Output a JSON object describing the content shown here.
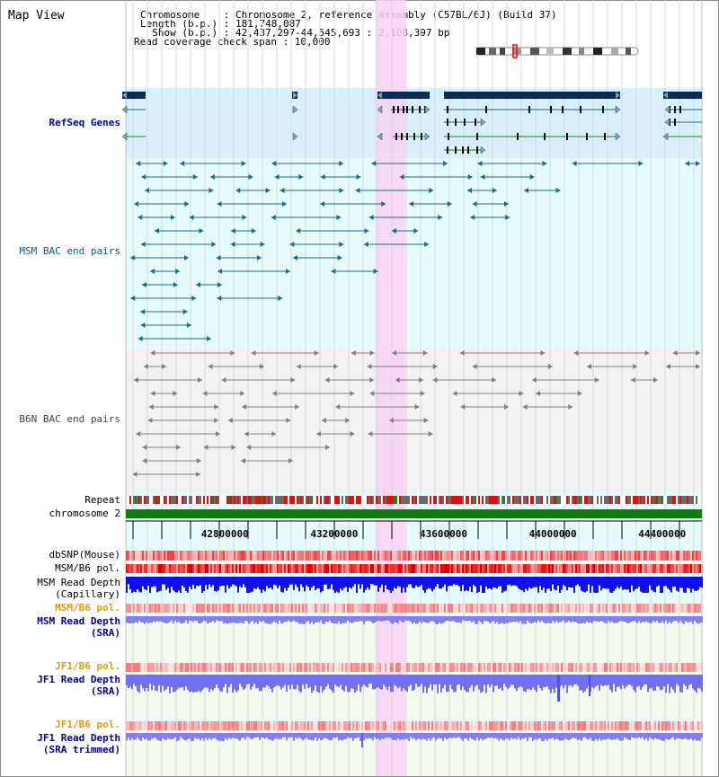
{
  "header": {
    "view_title": "Map View",
    "chromosome_line": "Chromosome    : Chromosome 2, reference assembly (C57BL/6J) (Build 37)",
    "length_line": "Length (b.p.) : 181,748,087",
    "show_line": "  Show (b.p.) : 42,437,297-44,545,693 : 2,108,397 bp",
    "coverage_line": "Read coverage check span : 10,000"
  },
  "ideogram": {
    "name": "chromosome-2-ideogram",
    "highlight_color": "#ff0000"
  },
  "colors": {
    "refseq_bg": "#d8f0fa",
    "track_bg": "#e6fcfc",
    "b6n_bg": "#f2f2f2",
    "sra_bg": "#f2fbee",
    "highlight": "#f9d2f4",
    "refseq_gene": "#0a2a5a",
    "msm_pair": "#1a6a8a",
    "b6n_pair": "#808080",
    "chromosome_bar": "#117a11",
    "axis_label_blue": "#00009a",
    "axis_label_orange": "#e69a00",
    "axis_label_teal": "#007a8a"
  },
  "tracks": {
    "refseq": "RefSeq Genes",
    "msm_bac": "MSM BAC end pairs",
    "b6n_bac": "B6N BAC end pairs",
    "repeat": "Repeat",
    "chromosome": "chromosome 2",
    "dbsnp": "dbSNP(Mouse)",
    "msm_b6_pol_1": "MSM/B6 pol.",
    "msm_read_depth_cap_1": "MSM Read Depth",
    "msm_read_depth_cap_2": "(Capillary)",
    "msm_b6_pol_2": "MSM/B6 pol.",
    "msm_read_depth_sra_1": "MSM Read Depth",
    "msm_read_depth_sra_2": "(SRA)",
    "jf1_b6_pol_1": "JF1/B6 pol.",
    "jf1_read_depth_sra_1": "JF1 Read Depth",
    "jf1_read_depth_sra_2": "(SRA)",
    "jf1_b6_pol_2": "JF1/B6 pol.",
    "jf1_read_depth_trim_1": "JF1 Read Depth",
    "jf1_read_depth_trim_2": "(SRA trimmed)"
  },
  "axis": {
    "range_bp": [
      42437297,
      44545693
    ],
    "ticks": [
      {
        "value": 42800000,
        "label": "42800000"
      },
      {
        "value": 43200000,
        "label": "43200000"
      },
      {
        "value": 43600000,
        "label": "43600000"
      },
      {
        "value": 44000000,
        "label": "44000000"
      },
      {
        "value": 44400000,
        "label": "44400000"
      }
    ],
    "highlight_region_bp": [
      43350000,
      43460000
    ]
  }
}
